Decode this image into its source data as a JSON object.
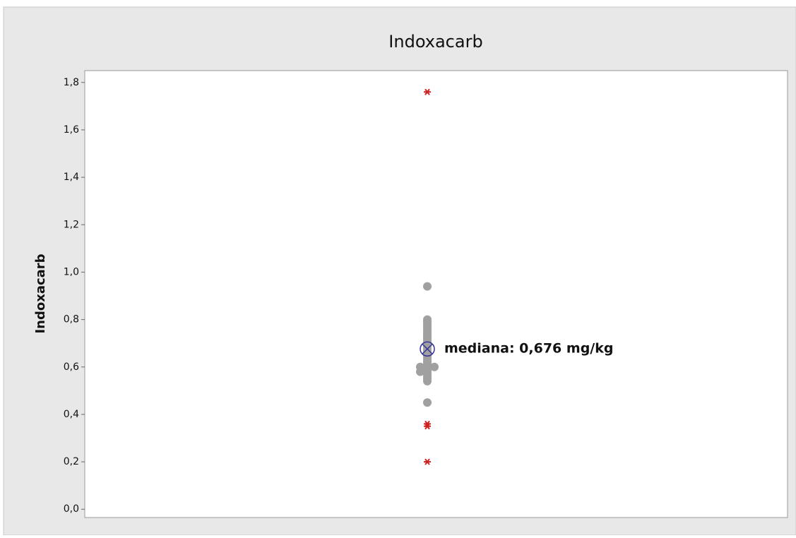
{
  "chart_data": {
    "type": "scatter",
    "title": "Indoxacarb",
    "y_label": "Indoxacarb",
    "points": {
      "color": "#a0a0a0",
      "values": [
        0.94,
        0.45,
        0.54,
        0.55,
        0.56,
        0.57,
        0.58,
        0.58,
        0.59,
        0.6,
        0.6,
        0.6,
        0.61,
        0.62,
        0.63,
        0.64,
        0.65,
        0.66,
        0.67,
        0.68,
        0.69,
        0.7,
        0.71,
        0.72,
        0.73,
        0.74,
        0.75,
        0.76,
        0.77,
        0.78,
        0.79,
        0.8
      ]
    },
    "outliers": {
      "color": "#cc2222",
      "values": [
        1.76,
        0.36,
        0.35,
        0.2
      ]
    },
    "median": 0.676,
    "median_color": "#333399",
    "annotation": "mediana: 0,676 mg/kg",
    "ylim": [
      -0.035,
      1.85
    ],
    "yticks": [
      {
        "value": 0,
        "label": "0,0"
      },
      {
        "value": 0.2,
        "label": "0,2"
      },
      {
        "value": 0.4,
        "label": "0,4"
      },
      {
        "value": 0.6,
        "label": "0,6"
      },
      {
        "value": 0.8,
        "label": "0,8"
      },
      {
        "value": 1.0,
        "label": "1,0"
      },
      {
        "value": 1.2,
        "label": "1,2"
      },
      {
        "value": 1.4,
        "label": "1,4"
      },
      {
        "value": 1.6,
        "label": "1,6"
      },
      {
        "value": 1.8,
        "label": "1,8"
      }
    ]
  }
}
